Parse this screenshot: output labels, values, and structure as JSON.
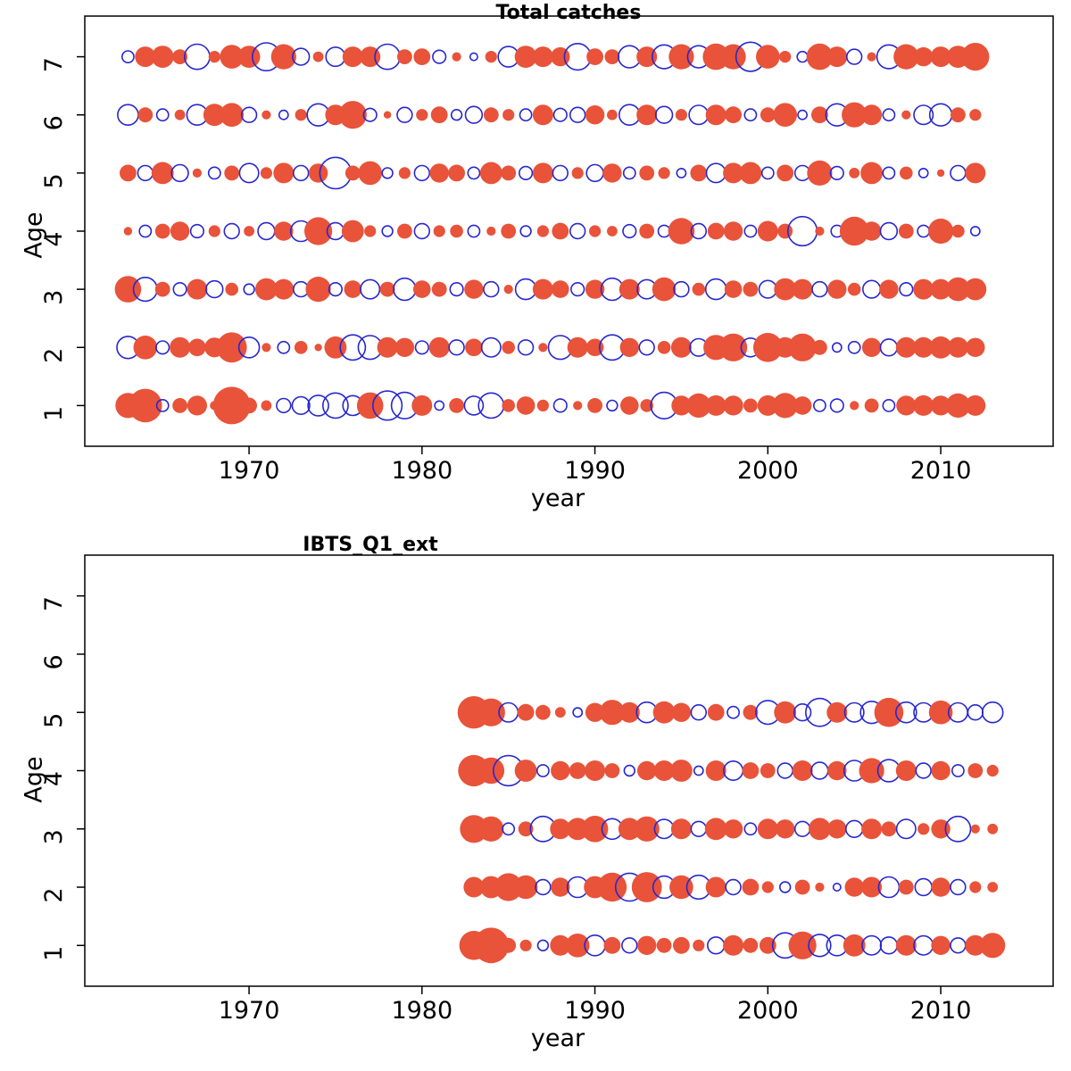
{
  "chart_data": [
    {
      "type": "scatter",
      "subtype": "residual-bubble",
      "title": "Total catches",
      "xlabel": "year",
      "ylabel": "Age",
      "x_ticks": [
        1970,
        1980,
        1990,
        2000,
        2010
      ],
      "xlim": [
        1960.5,
        2016.5
      ],
      "ylim": [
        0.3,
        7.7
      ],
      "ages": [
        1,
        2,
        3,
        4,
        5,
        6,
        7
      ],
      "start_year": 1963,
      "positive_color": "#e8533a",
      "negative_color": "#2727cf",
      "encoding": "filled circle = positive value, open circle = negative value, area proportional to magnitude",
      "rows": {
        "1": [
          0.45,
          0.8,
          -0.1,
          0.16,
          0.28,
          0.06,
          1.0,
          0.18,
          0.08,
          -0.14,
          -0.22,
          -0.3,
          -0.45,
          -0.28,
          0.5,
          -0.6,
          -0.5,
          0.3,
          -0.06,
          0.16,
          -0.25,
          -0.45,
          0.12,
          0.24,
          0.1,
          -0.12,
          0.06,
          0.16,
          -0.08,
          0.24,
          0.12,
          -0.5,
          0.28,
          0.42,
          0.3,
          0.28,
          0.14,
          0.3,
          0.45,
          0.24,
          -0.1,
          -0.12,
          0.06,
          0.14,
          -0.1,
          0.28,
          0.3,
          0.28,
          0.42,
          0.3
        ],
        "2": [
          -0.35,
          0.4,
          -0.12,
          0.3,
          0.22,
          0.28,
          0.65,
          -0.3,
          0.06,
          -0.1,
          0.12,
          0.04,
          0.35,
          -0.45,
          -0.4,
          0.3,
          0.26,
          -0.12,
          0.3,
          -0.16,
          0.22,
          -0.26,
          0.12,
          -0.16,
          0.06,
          -0.4,
          0.3,
          0.22,
          -0.45,
          0.26,
          -0.16,
          0.12,
          0.3,
          -0.22,
          0.45,
          0.55,
          -0.25,
          0.6,
          0.3,
          0.55,
          0.16,
          -0.06,
          -0.1,
          0.26,
          -0.2,
          0.3,
          0.3,
          0.35,
          0.3,
          0.26
        ],
        "3": [
          0.5,
          -0.4,
          0.16,
          -0.12,
          0.3,
          -0.2,
          0.12,
          -0.08,
          0.35,
          0.3,
          -0.16,
          0.45,
          -0.12,
          0.22,
          -0.26,
          0.16,
          -0.35,
          0.22,
          0.16,
          -0.12,
          0.26,
          -0.16,
          0.06,
          -0.3,
          0.3,
          0.22,
          -0.12,
          0.26,
          -0.35,
          0.3,
          -0.26,
          0.4,
          -0.16,
          0.12,
          -0.3,
          0.22,
          0.16,
          -0.22,
          0.35,
          0.3,
          -0.16,
          0.26,
          0.12,
          -0.22,
          0.26,
          -0.12,
          0.3,
          0.3,
          0.4,
          0.35
        ],
        "4": [
          0.05,
          -0.1,
          0.16,
          0.26,
          -0.12,
          0.1,
          -0.16,
          0.08,
          -0.2,
          0.26,
          -0.3,
          0.55,
          -0.2,
          0.35,
          0.1,
          -0.08,
          0.16,
          -0.16,
          0.1,
          0.12,
          -0.1,
          0.06,
          0.16,
          -0.08,
          0.1,
          0.2,
          -0.16,
          0.1,
          0.08,
          -0.12,
          0.16,
          -0.1,
          0.5,
          -0.16,
          0.2,
          0.26,
          -0.1,
          0.3,
          0.16,
          -0.6,
          0.06,
          -0.1,
          0.6,
          0.26,
          -0.2,
          0.16,
          -0.1,
          0.45,
          0.12,
          -0.06
        ],
        "5": [
          0.2,
          -0.16,
          0.35,
          -0.2,
          0.06,
          -0.1,
          0.16,
          -0.26,
          0.1,
          0.3,
          -0.16,
          0.26,
          -0.7,
          0.16,
          0.4,
          -0.08,
          0.1,
          -0.16,
          0.26,
          0.2,
          -0.1,
          0.35,
          0.16,
          -0.12,
          0.3,
          -0.16,
          0.1,
          -0.2,
          0.26,
          -0.1,
          0.16,
          0.1,
          -0.06,
          0.2,
          -0.26,
          0.3,
          0.35,
          -0.1,
          0.2,
          -0.16,
          0.45,
          -0.12,
          0.08,
          0.35,
          -0.1,
          0.12,
          -0.06,
          0.04,
          -0.16,
          0.3
        ],
        "6": [
          -0.3,
          0.16,
          -0.1,
          0.08,
          -0.3,
          0.35,
          0.4,
          -0.16,
          0.06,
          -0.06,
          0.1,
          -0.35,
          0.3,
          0.55,
          -0.12,
          0.04,
          -0.16,
          0.1,
          0.2,
          -0.08,
          -0.2,
          0.16,
          0.1,
          -0.1,
          0.3,
          -0.12,
          -0.16,
          0.26,
          0.08,
          -0.3,
          0.3,
          -0.2,
          0.1,
          -0.26,
          0.3,
          0.2,
          -0.1,
          0.16,
          0.4,
          -0.06,
          0.2,
          -0.35,
          0.45,
          0.3,
          -0.1,
          0.06,
          -0.26,
          -0.35,
          0.16,
          0.1
        ],
        "7": [
          -0.1,
          0.3,
          0.35,
          0.16,
          -0.45,
          0.1,
          0.4,
          0.35,
          -0.55,
          0.45,
          -0.2,
          0.08,
          -0.26,
          0.3,
          0.3,
          -0.45,
          0.16,
          0.2,
          -0.12,
          0.06,
          -0.04,
          0.1,
          -0.3,
          0.35,
          0.3,
          0.26,
          -0.5,
          0.2,
          0.16,
          -0.35,
          0.3,
          -0.4,
          0.45,
          -0.35,
          0.5,
          0.45,
          -0.6,
          0.4,
          0.1,
          -0.08,
          0.5,
          0.3,
          -0.16,
          0.06,
          -0.4,
          0.45,
          0.26,
          0.3,
          0.35,
          0.55
        ]
      }
    },
    {
      "type": "scatter",
      "subtype": "residual-bubble",
      "title": "IBTS_Q1_ext",
      "xlabel": "year",
      "ylabel": "Age",
      "x_ticks": [
        1970,
        1980,
        1990,
        2000,
        2010
      ],
      "xlim": [
        1960.5,
        2016.5
      ],
      "ylim": [
        0.3,
        7.7
      ],
      "ages": [
        1,
        2,
        3,
        4,
        5,
        6,
        7
      ],
      "start_year": 1983,
      "positive_color": "#e8533a",
      "negative_color": "#2727cf",
      "encoding": "filled circle = positive value, open circle = negative value, area proportional to magnitude",
      "rows": {
        "1": [
          0.6,
          0.9,
          0.16,
          0.1,
          -0.08,
          0.3,
          0.4,
          -0.3,
          0.2,
          -0.16,
          0.26,
          0.16,
          0.2,
          0.1,
          -0.2,
          0.3,
          0.16,
          0.2,
          -0.45,
          0.55,
          -0.35,
          -0.3,
          0.35,
          -0.26,
          -0.2,
          0.3,
          -0.26,
          0.26,
          -0.16,
          0.3,
          0.45
        ],
        "2": [
          0.3,
          0.35,
          0.55,
          0.4,
          -0.16,
          0.26,
          -0.3,
          0.35,
          0.6,
          -0.55,
          0.65,
          -0.35,
          0.4,
          -0.4,
          0.3,
          -0.16,
          0.2,
          0.1,
          -0.08,
          0.16,
          0.06,
          -0.04,
          0.26,
          0.3,
          -0.3,
          0.16,
          -0.2,
          0.26,
          -0.16,
          0.1,
          0.08
        ],
        "3": [
          0.55,
          0.45,
          -0.1,
          0.16,
          -0.45,
          0.3,
          0.35,
          0.5,
          -0.3,
          0.35,
          0.45,
          -0.26,
          0.3,
          -0.16,
          0.35,
          0.26,
          -0.1,
          0.3,
          0.26,
          -0.16,
          0.35,
          0.26,
          -0.2,
          0.3,
          0.16,
          -0.26,
          0.1,
          0.26,
          -0.45,
          0.06,
          0.08
        ],
        "4": [
          0.7,
          0.5,
          -0.65,
          0.35,
          -0.1,
          0.26,
          0.2,
          0.3,
          0.16,
          -0.08,
          0.26,
          0.3,
          0.35,
          -0.06,
          0.3,
          -0.26,
          0.2,
          0.16,
          -0.16,
          0.3,
          -0.2,
          0.26,
          -0.3,
          0.45,
          -0.35,
          0.3,
          -0.16,
          0.26,
          -0.1,
          0.16,
          0.1
        ],
        "5": [
          0.75,
          0.55,
          -0.26,
          0.2,
          0.16,
          0.08,
          -0.06,
          0.26,
          0.45,
          0.3,
          -0.3,
          0.35,
          0.26,
          -0.16,
          0.2,
          -0.1,
          0.16,
          -0.4,
          0.35,
          -0.2,
          -0.55,
          0.3,
          -0.26,
          -0.35,
          0.6,
          -0.3,
          -0.26,
          0.4,
          -0.26,
          -0.16,
          -0.3
        ]
      }
    }
  ]
}
